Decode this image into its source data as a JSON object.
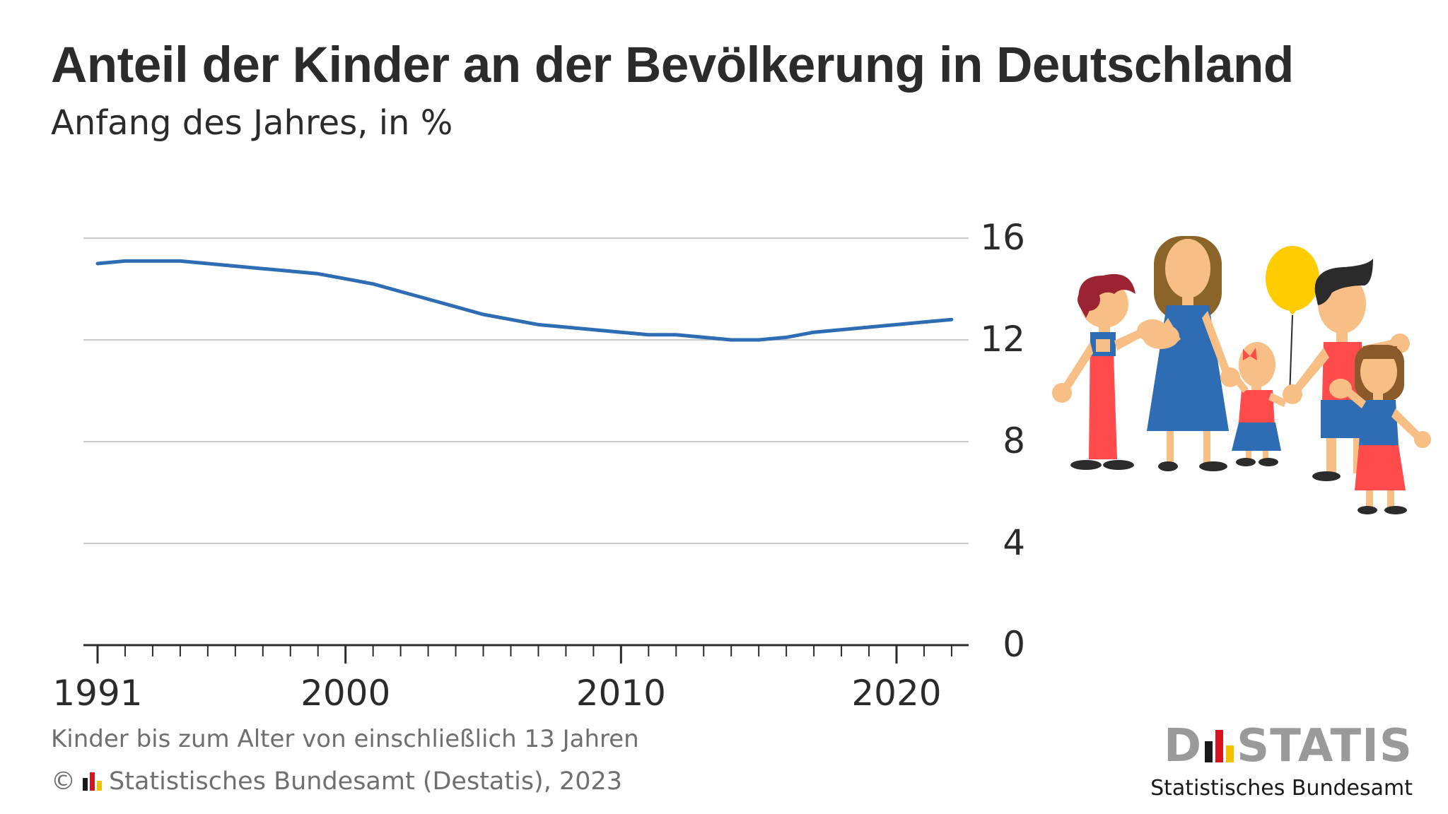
{
  "header": {
    "title": "Anteil der Kinder an der Bevölkerung in Deutschland",
    "subtitle": "Anfang des Jahres, in %"
  },
  "footer": {
    "footnote": "Kinder bis zum Alter von einschließlich 13 Jahren",
    "copyright_symbol": "©",
    "source": "Statistisches Bundesamt (Destatis), 2023"
  },
  "brand": {
    "word_prefix": "D",
    "word_suffix": "STATIS",
    "subtitle": "Statistisches Bundesamt",
    "flag_colors": [
      "#1a1a1a",
      "#d9121f",
      "#f2c200"
    ],
    "word_color": "#9a9a9a"
  },
  "illustration": {
    "icon": "family-children-illustration"
  },
  "chart_data": {
    "type": "line",
    "x": [
      1991,
      1992,
      1993,
      1994,
      1995,
      1996,
      1997,
      1998,
      1999,
      2000,
      2001,
      2002,
      2003,
      2004,
      2005,
      2006,
      2007,
      2008,
      2009,
      2010,
      2011,
      2012,
      2013,
      2014,
      2015,
      2016,
      2017,
      2018,
      2019,
      2020,
      2021,
      2022
    ],
    "series": [
      {
        "color": "#2e6db4",
        "values": [
          15.0,
          15.1,
          15.1,
          15.1,
          15.0,
          14.9,
          14.8,
          14.7,
          14.6,
          14.4,
          14.2,
          13.9,
          13.6,
          13.3,
          13.0,
          12.8,
          12.6,
          12.5,
          12.4,
          12.3,
          12.2,
          12.2,
          12.1,
          12.0,
          12.0,
          12.1,
          12.3,
          12.4,
          12.5,
          12.6,
          12.7,
          12.8
        ]
      }
    ],
    "ylim": [
      0,
      16
    ],
    "yticks": [
      "0",
      "4",
      "8",
      "12",
      "16"
    ],
    "xticks_labeled": [
      "1991",
      "2000",
      "2010",
      "2020"
    ],
    "y_axis_position": "right",
    "grid": true,
    "legend": "none"
  }
}
